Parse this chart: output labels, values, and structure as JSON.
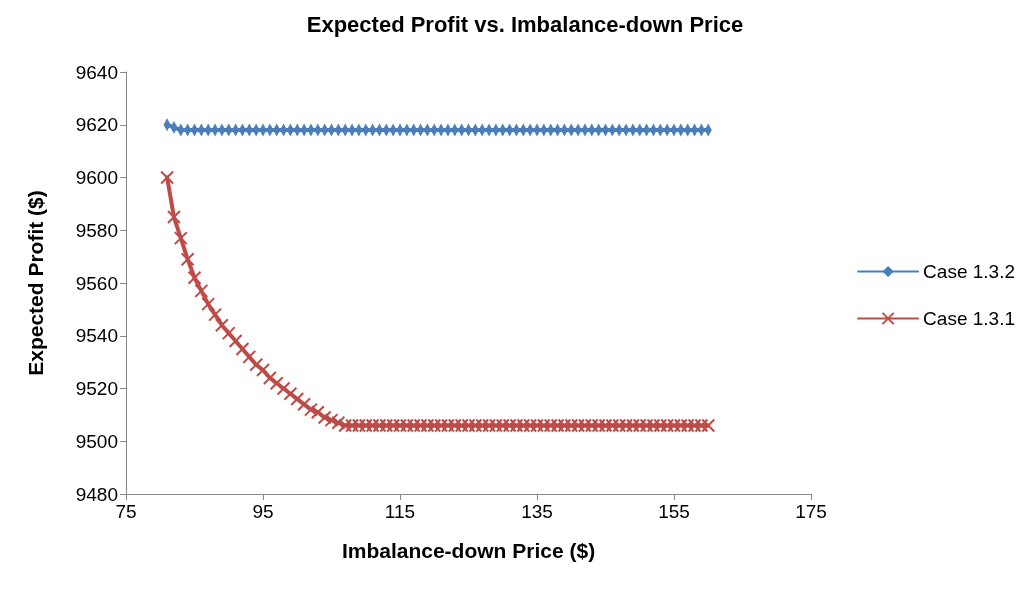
{
  "chart_data": {
    "type": "line",
    "title": "Expected Profit vs. Imbalance-down Price",
    "xlabel": "Imbalance-down Price ($)",
    "ylabel": "Expected Profit ($)",
    "x": [
      81,
      82,
      83,
      84,
      85,
      86,
      87,
      88,
      89,
      90,
      91,
      92,
      93,
      94,
      95,
      96,
      97,
      98,
      99,
      100,
      101,
      102,
      103,
      104,
      105,
      106,
      107,
      108,
      109,
      110,
      111,
      112,
      113,
      114,
      115,
      116,
      117,
      118,
      119,
      120,
      121,
      122,
      123,
      124,
      125,
      126,
      127,
      128,
      129,
      130,
      131,
      132,
      133,
      134,
      135,
      136,
      137,
      138,
      139,
      140,
      141,
      142,
      143,
      144,
      145,
      146,
      147,
      148,
      149,
      150,
      151,
      152,
      153,
      154,
      155,
      156,
      157,
      158,
      159,
      160
    ],
    "series": [
      {
        "name": "Case 1.3.2",
        "color": "#4a7ebb",
        "marker": "diamond",
        "values": [
          9620,
          9619,
          9618,
          9618,
          9618,
          9618,
          9618,
          9618,
          9618,
          9618,
          9618,
          9618,
          9618,
          9618,
          9618,
          9618,
          9618,
          9618,
          9618,
          9618,
          9618,
          9618,
          9618,
          9618,
          9618,
          9618,
          9618,
          9618,
          9618,
          9618,
          9618,
          9618,
          9618,
          9618,
          9618,
          9618,
          9618,
          9618,
          9618,
          9618,
          9618,
          9618,
          9618,
          9618,
          9618,
          9618,
          9618,
          9618,
          9618,
          9618,
          9618,
          9618,
          9618,
          9618,
          9618,
          9618,
          9618,
          9618,
          9618,
          9618,
          9618,
          9618,
          9618,
          9618,
          9618,
          9618,
          9618,
          9618,
          9618,
          9618,
          9618,
          9618,
          9618,
          9618,
          9618,
          9618,
          9618,
          9618,
          9618,
          9618
        ]
      },
      {
        "name": "Case 1.3.1",
        "color": "#be4b48",
        "marker": "cross",
        "values": [
          9600,
          9585,
          9577,
          9569,
          9562,
          9557,
          9552,
          9548,
          9544,
          9541,
          9538,
          9535,
          9532,
          9529,
          9527,
          9524,
          9522,
          9520,
          9518,
          9516,
          9514,
          9512,
          9511,
          9509,
          9508,
          9507,
          9506,
          9506,
          9506,
          9506,
          9506,
          9506,
          9506,
          9506,
          9506,
          9506,
          9506,
          9506,
          9506,
          9506,
          9506,
          9506,
          9506,
          9506,
          9506,
          9506,
          9506,
          9506,
          9506,
          9506,
          9506,
          9506,
          9506,
          9506,
          9506,
          9506,
          9506,
          9506,
          9506,
          9506,
          9506,
          9506,
          9506,
          9506,
          9506,
          9506,
          9506,
          9506,
          9506,
          9506,
          9506,
          9506,
          9506,
          9506,
          9506,
          9506,
          9506,
          9506,
          9506,
          9506
        ]
      }
    ],
    "xlim": [
      75,
      175
    ],
    "xticks": [
      75,
      95,
      115,
      135,
      155,
      175
    ],
    "ylim": [
      9480,
      9640
    ],
    "yticks": [
      9480,
      9500,
      9520,
      9540,
      9560,
      9580,
      9600,
      9620,
      9640
    ],
    "grid": false,
    "legend": "right",
    "line_style": "solid"
  }
}
